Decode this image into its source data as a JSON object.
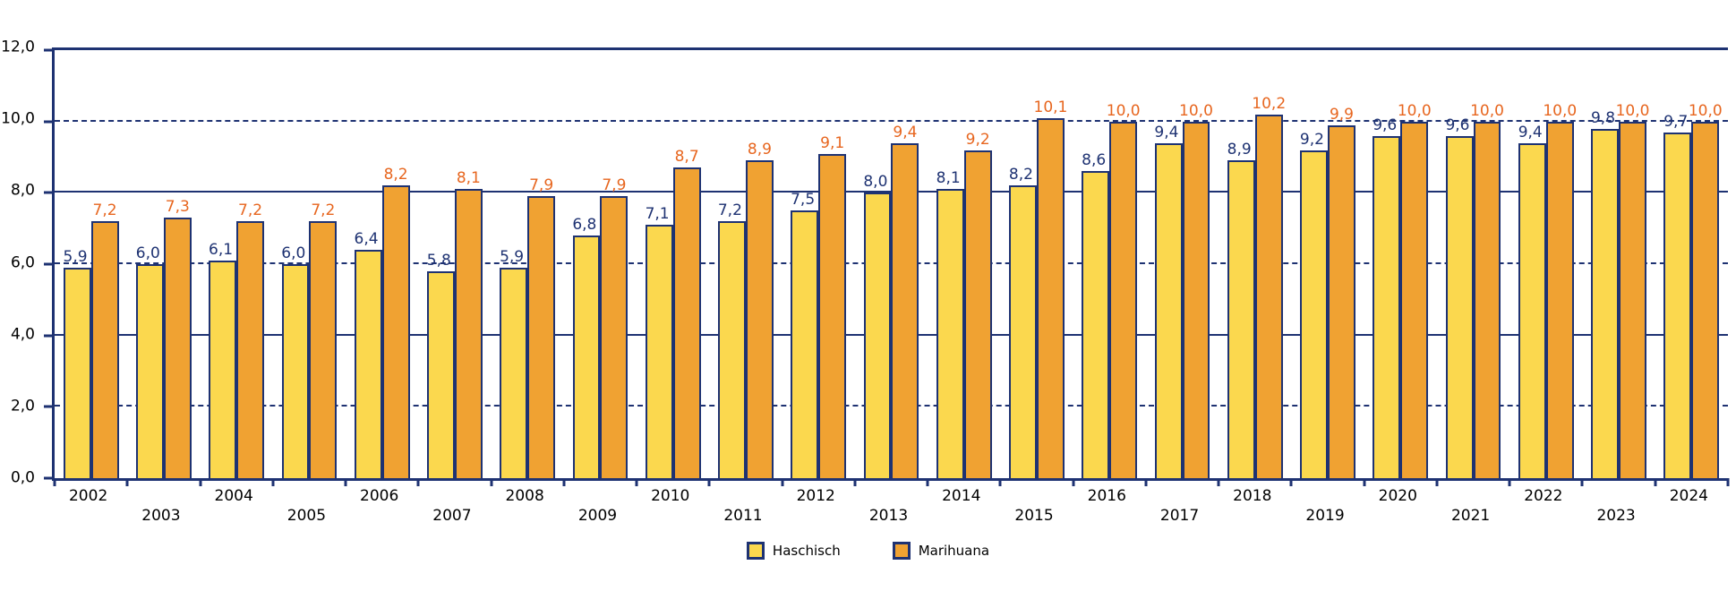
{
  "colors": {
    "axis": "#1e3272",
    "background": "#ffffff",
    "text": "#000000",
    "haschisch_fill": "#fbd84e",
    "marihuana_fill": "#f0a232",
    "haschisch_label": "#1e3272",
    "marihuana_label": "#e7661f"
  },
  "chart_data": {
    "type": "bar",
    "title": "",
    "xlabel": "",
    "ylabel": "",
    "ylim": [
      0,
      12
    ],
    "decimal_separator": ",",
    "legend_position": "bottom",
    "categories": [
      "2002",
      "2003",
      "2004",
      "2005",
      "2006",
      "2007",
      "2008",
      "2009",
      "2010",
      "2011",
      "2012",
      "2013",
      "2014",
      "2015",
      "2016",
      "2017",
      "2018",
      "2019",
      "2020",
      "2021",
      "2022",
      "2023",
      "2024"
    ],
    "series": [
      {
        "name": "Haschisch",
        "color": "#fbd84e",
        "label_color": "#1e3272",
        "values": [
          5.9,
          6.0,
          6.1,
          6.0,
          6.4,
          5.8,
          5.9,
          6.8,
          7.1,
          7.2,
          7.5,
          8.0,
          8.1,
          8.2,
          8.6,
          9.4,
          8.9,
          9.2,
          9.6,
          9.6,
          9.4,
          9.8,
          9.7
        ],
        "labels": [
          "5,9",
          "6,0",
          "6,1",
          "6,0",
          "6,4",
          "5,8",
          "5,9",
          "6,8",
          "7,1",
          "7,2",
          "7,5",
          "8,0",
          "8,1",
          "8,2",
          "8,6",
          "9,4",
          "8,9",
          "9,2",
          "9,6",
          "9,6",
          "9,4",
          "9,8",
          "9,7"
        ]
      },
      {
        "name": "Marihuana",
        "color": "#f0a232",
        "label_color": "#e7661f",
        "values": [
          7.2,
          7.3,
          7.2,
          7.2,
          8.2,
          8.1,
          7.9,
          7.9,
          8.7,
          8.9,
          9.1,
          9.4,
          9.2,
          10.1,
          10.0,
          10.0,
          10.2,
          9.9,
          10.0,
          10.0,
          10.0,
          10.0,
          10.0
        ],
        "labels": [
          "7,2",
          "7,3",
          "7,2",
          "7,2",
          "8,2",
          "8,1",
          "7,9",
          "7,9",
          "8,7",
          "8,9",
          "9,1",
          "9,4",
          "9,2",
          "10,1",
          "10,0",
          "10,0",
          "10,2",
          "9,9",
          "10,0",
          "10,0",
          "10,0",
          "10,0",
          "10,0"
        ]
      }
    ],
    "yticks": [
      {
        "value": 0,
        "label": "0,0",
        "line": "axis"
      },
      {
        "value": 2,
        "label": "2,0",
        "line": "dashed"
      },
      {
        "value": 4,
        "label": "4,0",
        "line": "solid"
      },
      {
        "value": 6,
        "label": "6,0",
        "line": "dashed"
      },
      {
        "value": 8,
        "label": "8,0",
        "line": "solid"
      },
      {
        "value": 10,
        "label": "10,0",
        "line": "dashed"
      },
      {
        "value": 12,
        "label": "12,0",
        "line": "border"
      }
    ]
  }
}
